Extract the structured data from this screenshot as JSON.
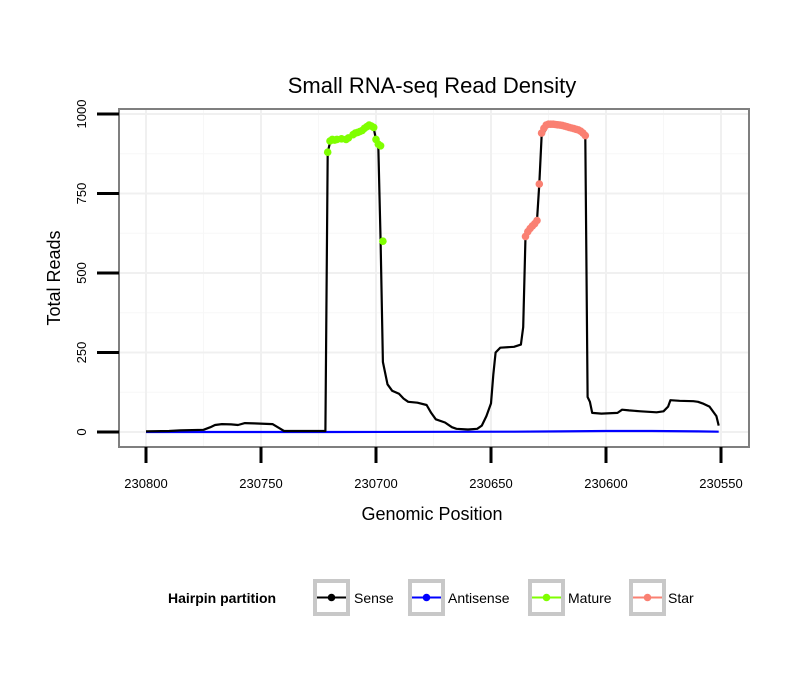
{
  "chart_data": {
    "type": "line",
    "title": "Small RNA-seq Read Density",
    "xlabel": "Genomic Position",
    "ylabel": "Total Reads",
    "x_reversed": true,
    "xlim": [
      230550,
      230800
    ],
    "ylim": [
      0,
      1000
    ],
    "x_ticks": [
      230800,
      230750,
      230700,
      230650,
      230600,
      230550
    ],
    "y_ticks": [
      0,
      250,
      500,
      750,
      1000
    ],
    "legend": {
      "title": "Hairpin partition",
      "position": "bottom",
      "entries": [
        {
          "label": "Sense",
          "color": "#000000"
        },
        {
          "label": "Antisense",
          "color": "#0000ff"
        },
        {
          "label": "Mature",
          "color": "#7fff00"
        },
        {
          "label": "Star",
          "color": "#fa8072"
        }
      ]
    },
    "series": [
      {
        "name": "Sense",
        "color": "#000000",
        "points": [
          [
            230800,
            2
          ],
          [
            230790,
            3
          ],
          [
            230785,
            5
          ],
          [
            230775,
            7
          ],
          [
            230772,
            15
          ],
          [
            230770,
            22
          ],
          [
            230767,
            25
          ],
          [
            230763,
            24
          ],
          [
            230760,
            22
          ],
          [
            230757,
            28
          ],
          [
            230753,
            27
          ],
          [
            230745,
            25
          ],
          [
            230742,
            12
          ],
          [
            230740,
            3
          ],
          [
            230722,
            3
          ],
          [
            230721,
            880
          ],
          [
            230720,
            910
          ],
          [
            230718,
            915
          ],
          [
            230713,
            920
          ],
          [
            230710,
            935
          ],
          [
            230706,
            950
          ],
          [
            230703,
            960
          ],
          [
            230701,
            955
          ],
          [
            230700,
            920
          ],
          [
            230699,
            900
          ],
          [
            230698,
            600
          ],
          [
            230697,
            220
          ],
          [
            230695,
            150
          ],
          [
            230693,
            130
          ],
          [
            230690,
            120
          ],
          [
            230688,
            105
          ],
          [
            230686,
            95
          ],
          [
            230682,
            92
          ],
          [
            230678,
            85
          ],
          [
            230676,
            60
          ],
          [
            230674,
            40
          ],
          [
            230670,
            30
          ],
          [
            230667,
            15
          ],
          [
            230665,
            10
          ],
          [
            230660,
            8
          ],
          [
            230656,
            10
          ],
          [
            230654,
            20
          ],
          [
            230652,
            50
          ],
          [
            230650,
            90
          ],
          [
            230649,
            180
          ],
          [
            230648,
            250
          ],
          [
            230646,
            265
          ],
          [
            230640,
            268
          ],
          [
            230637,
            275
          ],
          [
            230636,
            330
          ],
          [
            230635,
            615
          ],
          [
            230633,
            640
          ],
          [
            230630,
            665
          ],
          [
            230629,
            780
          ],
          [
            230628,
            930
          ],
          [
            230625,
            965
          ],
          [
            230620,
            968
          ],
          [
            230615,
            962
          ],
          [
            230612,
            955
          ],
          [
            230610,
            945
          ],
          [
            230609,
            930
          ],
          [
            230608,
            110
          ],
          [
            230607,
            95
          ],
          [
            230606,
            60
          ],
          [
            230602,
            58
          ],
          [
            230595,
            60
          ],
          [
            230593,
            70
          ],
          [
            230590,
            68
          ],
          [
            230585,
            65
          ],
          [
            230578,
            62
          ],
          [
            230575,
            65
          ],
          [
            230573,
            80
          ],
          [
            230572,
            100
          ],
          [
            230568,
            98
          ],
          [
            230562,
            97
          ],
          [
            230560,
            95
          ],
          [
            230558,
            90
          ],
          [
            230555,
            80
          ],
          [
            230552,
            50
          ],
          [
            230551,
            20
          ]
        ]
      },
      {
        "name": "Antisense",
        "color": "#0000ff",
        "points": [
          [
            230800,
            0
          ],
          [
            230720,
            0
          ],
          [
            230640,
            1
          ],
          [
            230620,
            2
          ],
          [
            230600,
            3
          ],
          [
            230580,
            3
          ],
          [
            230560,
            2
          ],
          [
            230551,
            1
          ]
        ]
      },
      {
        "name": "Mature",
        "color": "#7fff00",
        "points": [
          [
            230721,
            880
          ],
          [
            230720,
            915
          ],
          [
            230719,
            920
          ],
          [
            230718,
            918
          ],
          [
            230717,
            920
          ],
          [
            230715,
            922
          ],
          [
            230713,
            920
          ],
          [
            230712,
            925
          ],
          [
            230710,
            935
          ],
          [
            230709,
            940
          ],
          [
            230708,
            942
          ],
          [
            230707,
            945
          ],
          [
            230706,
            948
          ],
          [
            230705,
            955
          ],
          [
            230704,
            960
          ],
          [
            230703,
            965
          ],
          [
            230702,
            962
          ],
          [
            230701,
            958
          ],
          [
            230700,
            920
          ],
          [
            230699,
            905
          ],
          [
            230698,
            900
          ],
          [
            230697,
            600
          ]
        ]
      },
      {
        "name": "Star",
        "color": "#fa8072",
        "points": [
          [
            230635,
            615
          ],
          [
            230634,
            630
          ],
          [
            230633,
            640
          ],
          [
            230632,
            648
          ],
          [
            230631,
            655
          ],
          [
            230630,
            665
          ],
          [
            230629,
            780
          ],
          [
            230628,
            940
          ],
          [
            230627,
            955
          ],
          [
            230626,
            965
          ],
          [
            230625,
            968
          ],
          [
            230624,
            968
          ],
          [
            230623,
            968
          ],
          [
            230622,
            967
          ],
          [
            230621,
            966
          ],
          [
            230620,
            965
          ],
          [
            230619,
            964
          ],
          [
            230618,
            962
          ],
          [
            230617,
            960
          ],
          [
            230616,
            958
          ],
          [
            230615,
            956
          ],
          [
            230614,
            954
          ],
          [
            230613,
            952
          ],
          [
            230612,
            950
          ],
          [
            230611,
            946
          ],
          [
            230610,
            940
          ],
          [
            230609,
            932
          ]
        ]
      }
    ]
  }
}
